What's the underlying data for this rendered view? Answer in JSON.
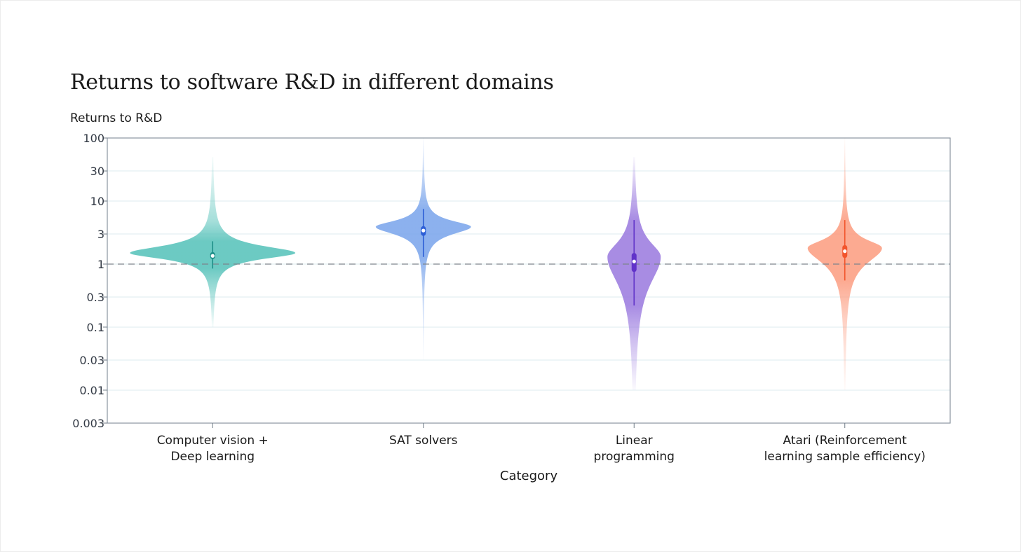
{
  "chart_data": {
    "type": "violin",
    "title": "Returns to software R&D in different domains",
    "ylabel": "Returns to R&D",
    "xlabel": "Category",
    "yscale": "log",
    "ylim": [
      0.003,
      100
    ],
    "yticks": [
      100,
      30,
      10,
      3,
      1,
      0.3,
      0.1,
      0.03,
      0.01,
      0.003
    ],
    "ytick_labels": [
      "100",
      "30",
      "10",
      "3",
      "1",
      "0.3",
      "0.1",
      "0.03",
      "0.01",
      "0.003"
    ],
    "reference_line": {
      "y": 1,
      "style": "dashed"
    },
    "grid": "horizontal",
    "categories": [
      "Computer vision +\nDeep learning",
      "SAT solvers",
      "Linear\nprogramming",
      "Atari (Reinforcement\nlearning sample efficiency)"
    ],
    "series": [
      {
        "color": "#5cc4bc",
        "dark_color": "#1e8f88",
        "median": 1.35,
        "q1": 1.2,
        "q3": 1.55,
        "whisker_low": 0.85,
        "whisker_high": 2.3,
        "tail_low": 0.1,
        "tail_high": 50,
        "mode": 1.5,
        "max_half_width": 118,
        "sigma_low": 0.12,
        "sigma_high": 0.14
      },
      {
        "color": "#7fa8ec",
        "dark_color": "#2d5fd6",
        "median": 3.4,
        "q1": 2.8,
        "q3": 4.0,
        "whisker_low": 1.3,
        "whisker_high": 7.5,
        "tail_low": 0.03,
        "tail_high": 100,
        "mode": 3.9,
        "max_half_width": 68,
        "sigma_low": 0.15,
        "sigma_high": 0.12
      },
      {
        "color": "#9e7fe0",
        "dark_color": "#6133c9",
        "median": 1.1,
        "q1": 0.75,
        "q3": 1.5,
        "whisker_low": 0.22,
        "whisker_high": 5.0,
        "tail_low": 0.01,
        "tail_high": 50,
        "mode": 1.3,
        "max_half_width": 38,
        "sigma_low": 0.55,
        "sigma_high": 0.3
      },
      {
        "color": "#fca085",
        "dark_color": "#f2552c",
        "median": 1.6,
        "q1": 1.25,
        "q3": 2.0,
        "whisker_low": 0.55,
        "whisker_high": 5.0,
        "tail_low": 0.01,
        "tail_high": 100,
        "mode": 1.8,
        "max_half_width": 53,
        "sigma_low": 0.3,
        "sigma_high": 0.16
      }
    ]
  }
}
